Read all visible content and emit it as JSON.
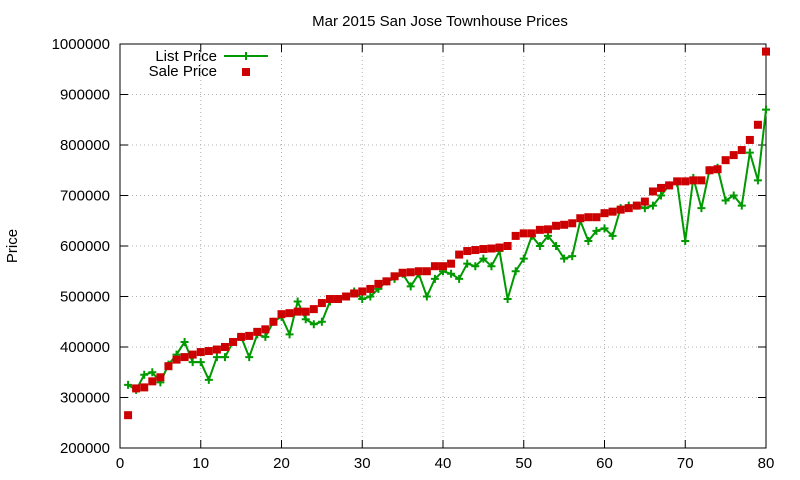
{
  "chart_data": {
    "type": "line",
    "title": "Mar 2015 San Jose Townhouse Prices",
    "xlabel": "",
    "ylabel": "Price",
    "xlim": [
      0,
      80
    ],
    "ylim": [
      200000,
      1000000
    ],
    "xticks": [
      "0",
      "10",
      "20",
      "30",
      "40",
      "50",
      "60",
      "70",
      "80"
    ],
    "yticks": [
      "200000",
      "300000",
      "400000",
      "500000",
      "600000",
      "700000",
      "800000",
      "900000",
      "1000000"
    ],
    "grid": true,
    "legend_position": "top-left",
    "colors": {
      "list": "#009900",
      "sale": "#cc0000"
    },
    "x": [
      1,
      2,
      3,
      4,
      5,
      6,
      7,
      8,
      9,
      10,
      11,
      12,
      13,
      14,
      15,
      16,
      17,
      18,
      19,
      20,
      21,
      22,
      23,
      24,
      25,
      26,
      27,
      28,
      29,
      30,
      31,
      32,
      33,
      34,
      35,
      36,
      37,
      38,
      39,
      40,
      41,
      42,
      43,
      44,
      45,
      46,
      47,
      48,
      49,
      50,
      51,
      52,
      53,
      54,
      55,
      56,
      57,
      58,
      59,
      60,
      61,
      62,
      63,
      64,
      65,
      66,
      67,
      68,
      69,
      70,
      71,
      72,
      73,
      74,
      75,
      76,
      77,
      78,
      79,
      80
    ],
    "series": [
      {
        "name": "List Price",
        "style": "lines-points-plus",
        "values": [
          325000,
          315000,
          345000,
          350000,
          330000,
          365000,
          385000,
          410000,
          370000,
          370000,
          335000,
          380000,
          380000,
          410000,
          420000,
          380000,
          425000,
          420000,
          450000,
          460000,
          425000,
          490000,
          455000,
          445000,
          450000,
          490000,
          495000,
          500000,
          510000,
          495000,
          500000,
          515000,
          530000,
          535000,
          545000,
          520000,
          545000,
          500000,
          535000,
          550000,
          545000,
          535000,
          565000,
          560000,
          575000,
          560000,
          590000,
          495000,
          550000,
          575000,
          620000,
          600000,
          620000,
          600000,
          575000,
          580000,
          650000,
          610000,
          630000,
          635000,
          620000,
          675000,
          680000,
          680000,
          675000,
          680000,
          700000,
          720000,
          725000,
          610000,
          735000,
          675000,
          750000,
          755000,
          690000,
          700000,
          680000,
          785000,
          730000,
          870000
        ]
      },
      {
        "name": "Sale Price",
        "style": "points-square",
        "values": [
          265000,
          318000,
          320000,
          332000,
          340000,
          362000,
          375000,
          380000,
          385000,
          390000,
          392000,
          395000,
          400000,
          410000,
          420000,
          422000,
          430000,
          435000,
          450000,
          465000,
          467000,
          470000,
          470000,
          475000,
          487000,
          495000,
          495000,
          500000,
          506000,
          510000,
          515000,
          525000,
          530000,
          540000,
          547000,
          548000,
          550000,
          550000,
          560000,
          560000,
          565000,
          583000,
          590000,
          592000,
          594000,
          595000,
          597000,
          600000,
          620000,
          625000,
          625000,
          632000,
          633000,
          640000,
          642000,
          645000,
          655000,
          657000,
          657000,
          665000,
          668000,
          672000,
          675000,
          680000,
          688000,
          708000,
          715000,
          720000,
          728000,
          728000,
          730000,
          730000,
          750000,
          752000,
          770000,
          780000,
          790000,
          810000,
          840000,
          985000
        ]
      }
    ]
  }
}
